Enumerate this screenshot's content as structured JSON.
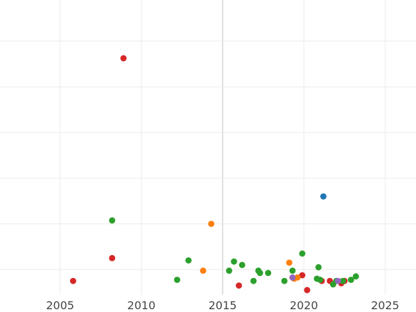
{
  "chart_data": {
    "type": "scatter",
    "title": "",
    "xlabel": "",
    "ylabel": "",
    "xlim": [
      2001.3,
      2026.9
    ],
    "ylim": [
      -0.12,
      2.46
    ],
    "x_ticks": [
      {
        "value": 2005,
        "label": "2005"
      },
      {
        "value": 2010,
        "label": "2010"
      },
      {
        "value": 2015,
        "label": "2015"
      },
      {
        "value": 2020,
        "label": "2020"
      },
      {
        "value": 2025,
        "label": "2025"
      }
    ],
    "y_gridlines": [
      0.1,
      0.5,
      0.9,
      1.3,
      1.7,
      2.1,
      2.5
    ],
    "grid": true,
    "legend": "none",
    "colors": {
      "red": "#d62728",
      "green": "#2ca02c",
      "orange": "#ff7f0e",
      "blue": "#1f77b4",
      "purple": "#9467bd",
      "grid": "#ebebeb",
      "tick_text": "#444444"
    },
    "series": [
      {
        "color": "red",
        "points": [
          [
            2005.8,
            0.0
          ],
          [
            2008.9,
            1.95
          ],
          [
            2008.2,
            0.2
          ],
          [
            2016.0,
            -0.04
          ],
          [
            2019.9,
            0.05
          ],
          [
            2020.2,
            -0.08
          ],
          [
            2021.1,
            0.0
          ],
          [
            2021.6,
            0.0
          ],
          [
            2022.3,
            -0.02
          ],
          [
            2022.5,
            0.0
          ]
        ]
      },
      {
        "color": "green",
        "points": [
          [
            2008.2,
            0.53
          ],
          [
            2012.2,
            0.01
          ],
          [
            2012.9,
            0.18
          ],
          [
            2015.4,
            0.09
          ],
          [
            2015.7,
            0.17
          ],
          [
            2016.2,
            0.14
          ],
          [
            2016.9,
            0.0
          ],
          [
            2017.2,
            0.09
          ],
          [
            2017.3,
            0.07
          ],
          [
            2017.8,
            0.07
          ],
          [
            2018.8,
            0.0
          ],
          [
            2019.3,
            0.09
          ],
          [
            2019.9,
            0.24
          ],
          [
            2020.9,
            0.12
          ],
          [
            2020.8,
            0.02
          ],
          [
            2021.0,
            0.01
          ],
          [
            2021.8,
            -0.03
          ],
          [
            2022.0,
            0.0
          ],
          [
            2022.4,
            0.0
          ],
          [
            2022.9,
            0.01
          ],
          [
            2023.2,
            0.04
          ]
        ]
      },
      {
        "color": "orange",
        "points": [
          [
            2014.3,
            0.5
          ],
          [
            2013.8,
            0.09
          ],
          [
            2019.1,
            0.16
          ],
          [
            2019.6,
            0.03
          ],
          [
            2019.4,
            0.02
          ]
        ]
      },
      {
        "color": "blue",
        "points": [
          [
            2021.2,
            0.74
          ]
        ]
      },
      {
        "color": "purple",
        "points": [
          [
            2019.3,
            0.03
          ],
          [
            2022.1,
            0.0
          ]
        ]
      }
    ]
  }
}
